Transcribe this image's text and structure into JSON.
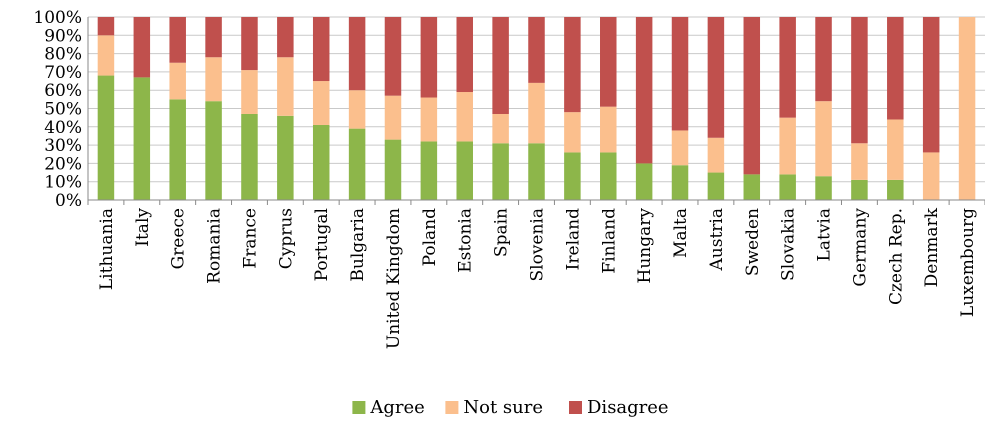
{
  "chart_data": {
    "type": "bar",
    "stacked": true,
    "categories": [
      "Lithuania",
      "Italy",
      "Greece",
      "Romania",
      "France",
      "Cyprus",
      "Portugal",
      "Bulgaria",
      "United Kingdom",
      "Poland",
      "Estonia",
      "Spain",
      "Slovenia",
      "Ireland",
      "Finland",
      "Hungary",
      "Malta",
      "Austria",
      "Sweden",
      "Slovakia",
      "Latvia",
      "Germany",
      "Czech Rep.",
      "Denmark",
      "Luxembourg"
    ],
    "series": [
      {
        "name": "Agree",
        "color": "#8db64a",
        "values": [
          68,
          67,
          55,
          54,
          47,
          46,
          41,
          39,
          33,
          32,
          32,
          31,
          31,
          26,
          26,
          20,
          19,
          15,
          14,
          14,
          13,
          11,
          11,
          0,
          0
        ]
      },
      {
        "name": "Not sure",
        "color": "#fbbf8d",
        "values": [
          22,
          0,
          20,
          24,
          24,
          32,
          24,
          21,
          24,
          24,
          27,
          16,
          33,
          22,
          25,
          0,
          19,
          19,
          0,
          31,
          41,
          20,
          33,
          26,
          100
        ]
      },
      {
        "name": "Disagree",
        "color": "#c0504d",
        "values": [
          10,
          33,
          25,
          22,
          29,
          22,
          35,
          40,
          43,
          44,
          41,
          53,
          36,
          52,
          49,
          80,
          62,
          66,
          86,
          55,
          46,
          69,
          56,
          74,
          0
        ]
      }
    ],
    "yticks": [
      "0%",
      "10%",
      "20%",
      "30%",
      "40%",
      "50%",
      "60%",
      "70%",
      "80%",
      "90%",
      "100%"
    ],
    "ylim": [
      0,
      100
    ],
    "grid": true,
    "legend": "bottom"
  }
}
